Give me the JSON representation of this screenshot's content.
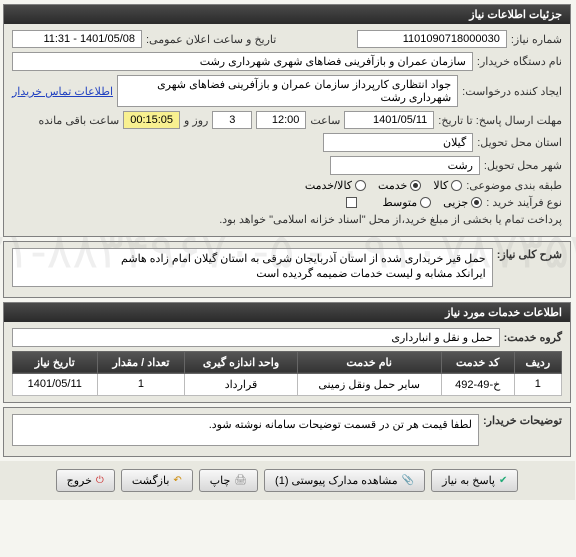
{
  "header": {
    "title": "جزئیات اطلاعات نیاز"
  },
  "top": {
    "need_no_label": "شماره نیاز:",
    "need_no": "1101090718000030",
    "announce_label": "تاریخ و ساعت اعلان عمومی:",
    "announce_val": "1401/05/08 - 11:31",
    "buyer_label": "نام دستگاه خریدار:",
    "buyer_val": "سازمان عمران و بازآفرینی فضاهای شهری شهرداری رشت",
    "requester_label": "ایجاد کننده درخواست:",
    "requester_val": "جواد انتظاری  کارپرداز سازمان عمران و بازآفرینی فضاهای شهری شهرداری رشت",
    "contact_link": "اطلاعات تماس خریدار",
    "deadline_label": "مهلت ارسال پاسخ: تا تاریخ:",
    "deadline_date": "1401/05/11",
    "deadline_time_label": "ساعت",
    "deadline_time": "12:00",
    "days_box": "3",
    "days_label": "روز و",
    "countdown": "00:15:05",
    "remaining_label": "ساعت باقی مانده",
    "province_label": "استان محل تحویل:",
    "province_val": "گیلان",
    "city_label": "شهر محل تحویل:",
    "city_val": "رشت",
    "category_label": "طبقه بندی موضوعی:",
    "cat_goods": "کالا",
    "cat_service": "خدمت",
    "cat_both": "کالا/خدمت",
    "purchase_type_label": "نوع فرآیند خرید :",
    "pt_partial": "جزیی",
    "pt_medium": "متوسط",
    "pt_note": "پرداخت تمام یا بخشی از مبلغ خرید،از محل \"اسناد خزانه اسلامی\" خواهد بود."
  },
  "desc": {
    "label": "شرح کلی نیاز:",
    "text": "حمل قیر خریداری شده از استان آذربایجان شرقی به استان گیلان امام زاده هاشم\nایرانکد مشابه و لیست خدمات ضمیمه گردیده است"
  },
  "services": {
    "header": "اطلاعات خدمات مورد نیاز",
    "group_label": "گروه خدمت:",
    "group_val": "حمل و نقل و انبارداری",
    "columns": [
      "ردیف",
      "کد خدمت",
      "نام خدمت",
      "واحد اندازه گیری",
      "تعداد / مقدار",
      "تاریخ نیاز"
    ],
    "rows": [
      [
        "1",
        "خ-49-492",
        "سایر حمل ونقل زمینی",
        "قرارداد",
        "1",
        "1401/05/11"
      ]
    ]
  },
  "buyer_notes": {
    "label": "توضیحات خریدار:",
    "text": "لطفا قیمت هر تن در قسمت توضیحات سامانه نوشته شود."
  },
  "buttons": {
    "reply": "پاسخ به نیاز",
    "attach": "مشاهده مدارک پیوستی (1)",
    "print": "چاپ",
    "back": "بازگشت",
    "exit": "خروج"
  },
  "watermark": "۰۹۱۰۷۸۷۳۵۳۸ -\n۰۲۱-۸۸۳۴۹۶۷۰-۵"
}
